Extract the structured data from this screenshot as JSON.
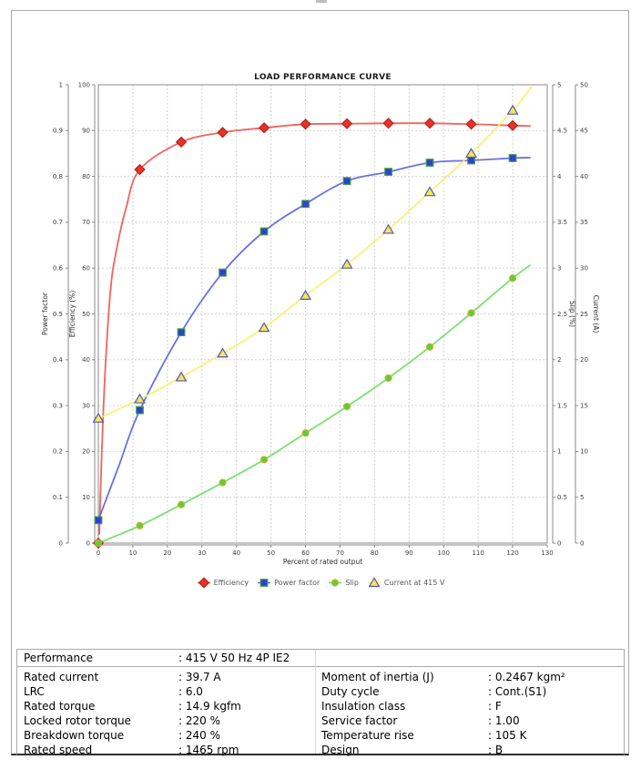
{
  "chart_data": {
    "type": "line",
    "title": "LOAD PERFORMANCE CURVE",
    "xlabel": "Percent of rated output",
    "x_axis": {
      "label": "Percent of rated output",
      "min": 0,
      "max": 130,
      "ticks": [
        "0",
        "10",
        "20",
        "30",
        "40",
        "50",
        "60",
        "70",
        "80",
        "90",
        "100",
        "110",
        "120",
        "130"
      ]
    },
    "axes": [
      {
        "id": "power_factor",
        "label": "Power factor",
        "side": "left",
        "min": 0,
        "max": 1,
        "ticks": [
          "0",
          "0.1",
          "0.2",
          "0.3",
          "0.4",
          "0.5",
          "0.6",
          "0.7",
          "0.8",
          "0.9",
          "1"
        ]
      },
      {
        "id": "efficiency",
        "label": "Efficiency (%)",
        "side": "left",
        "min": 0,
        "max": 100,
        "ticks": [
          "0",
          "10",
          "20",
          "30",
          "40",
          "50",
          "60",
          "70",
          "80",
          "90",
          "100"
        ]
      },
      {
        "id": "slip",
        "label": "Slip (%)",
        "side": "right",
        "min": 0,
        "max": 5,
        "ticks": [
          "0",
          "0.5",
          "1",
          "1.5",
          "2",
          "2.5",
          "3",
          "3.5",
          "4",
          "4.5",
          "5"
        ]
      },
      {
        "id": "current",
        "label": "Current (A)",
        "side": "right",
        "min": 0,
        "max": 50,
        "ticks": [
          "0",
          "5",
          "10",
          "15",
          "20",
          "25",
          "30",
          "35",
          "40",
          "45",
          "50"
        ]
      }
    ],
    "x": [
      0,
      12,
      24,
      36,
      48,
      60,
      72,
      84,
      96,
      108,
      120
    ],
    "series": [
      {
        "id": "efficiency",
        "name": "Efficiency",
        "axis": "efficiency",
        "marker": "diamond",
        "line_color": "#ee534b",
        "fill": "#e73329",
        "edge": "#bb2018",
        "values": [
          0,
          81.5,
          87.5,
          89.6,
          90.6,
          91.4,
          91.5,
          91.6,
          91.6,
          91.4,
          91.1
        ],
        "curve": [
          [
            0.3,
            2
          ],
          [
            1,
            20
          ],
          [
            2,
            38
          ],
          [
            3.5,
            55
          ],
          [
            5,
            63
          ],
          [
            8,
            73
          ],
          [
            12,
            81.5
          ],
          [
            24,
            87.5
          ],
          [
            36,
            89.6
          ],
          [
            48,
            90.6
          ],
          [
            60,
            91.4
          ],
          [
            72,
            91.5
          ],
          [
            84,
            91.6
          ],
          [
            96,
            91.6
          ],
          [
            108,
            91.4
          ],
          [
            120,
            91.1
          ],
          [
            125,
            91.0
          ]
        ]
      },
      {
        "id": "power_factor",
        "name": "Power factor",
        "axis": "power_factor",
        "marker": "square",
        "line_color": "#5a63e0",
        "fill": "#2f3fd3",
        "edge": "#3da23d",
        "values": [
          0.05,
          0.29,
          0.46,
          0.59,
          0.68,
          0.74,
          0.79,
          0.81,
          0.83,
          0.835,
          0.84
        ],
        "curve": [
          [
            0,
            0.05
          ],
          [
            6,
            0.17
          ],
          [
            12,
            0.29
          ],
          [
            24,
            0.46
          ],
          [
            36,
            0.59
          ],
          [
            48,
            0.68
          ],
          [
            60,
            0.74
          ],
          [
            72,
            0.79
          ],
          [
            84,
            0.81
          ],
          [
            96,
            0.83
          ],
          [
            108,
            0.835
          ],
          [
            120,
            0.84
          ],
          [
            125,
            0.841
          ]
        ]
      },
      {
        "id": "slip",
        "name": "Slip",
        "axis": "slip",
        "marker": "circle",
        "line_color": "#69df5e",
        "fill": "#4fd344",
        "edge": "#d9a91e",
        "values": [
          0,
          0.19,
          0.42,
          0.66,
          0.91,
          1.2,
          1.49,
          1.8,
          2.14,
          2.51,
          2.89
        ],
        "curve": [
          [
            0,
            0
          ],
          [
            12,
            0.19
          ],
          [
            24,
            0.42
          ],
          [
            36,
            0.66
          ],
          [
            48,
            0.91
          ],
          [
            60,
            1.2
          ],
          [
            72,
            1.49
          ],
          [
            84,
            1.8
          ],
          [
            96,
            2.14
          ],
          [
            108,
            2.51
          ],
          [
            120,
            2.89
          ],
          [
            125,
            3.03
          ]
        ]
      },
      {
        "id": "current",
        "name": "Current at 415 V",
        "axis": "current",
        "marker": "triangle",
        "line_color": "#f5f266",
        "fill": "#f4ec3f",
        "edge": "#5352d5",
        "values": [
          13.6,
          15.7,
          18.1,
          20.7,
          23.5,
          27.0,
          30.4,
          34.2,
          38.3,
          42.5,
          47.2
        ],
        "curve": [
          [
            0,
            13.6
          ],
          [
            12,
            15.7
          ],
          [
            24,
            18.1
          ],
          [
            36,
            20.7
          ],
          [
            48,
            23.5
          ],
          [
            60,
            27.0
          ],
          [
            72,
            30.4
          ],
          [
            84,
            34.2
          ],
          [
            96,
            38.3
          ],
          [
            108,
            42.5
          ],
          [
            120,
            47.2
          ],
          [
            125.5,
            49.8
          ]
        ]
      }
    ],
    "legend_position": "bottom-center",
    "grid": true
  },
  "legend": {
    "items": [
      {
        "label": "Efficiency"
      },
      {
        "label": "Power factor"
      },
      {
        "label": "Slip"
      },
      {
        "label": "Current at 415 V"
      }
    ]
  },
  "table": {
    "header": {
      "label": "Performance",
      "value": ": 415 V 50 Hz 4P IE2"
    },
    "rows": [
      {
        "l": "Rated current",
        "lv": ": 39.7 A",
        "r": "Moment of inertia (J)",
        "rv": ": 0.2467 kgm²"
      },
      {
        "l": "LRC",
        "lv": ": 6.0",
        "r": "Duty cycle",
        "rv": ": Cont.(S1)"
      },
      {
        "l": "Rated torque",
        "lv": ": 14.9 kgfm",
        "r": "Insulation class",
        "rv": ": F"
      },
      {
        "l": "Locked rotor torque",
        "lv": ": 220 %",
        "r": "Service factor",
        "rv": ": 1.00"
      },
      {
        "l": "Breakdown torque",
        "lv": ": 240 %",
        "r": "Temperature rise",
        "rv": ": 105 K"
      },
      {
        "l": "Rated speed",
        "lv": ": 1465 rpm",
        "r": "Design",
        "rv": ": B"
      }
    ]
  }
}
